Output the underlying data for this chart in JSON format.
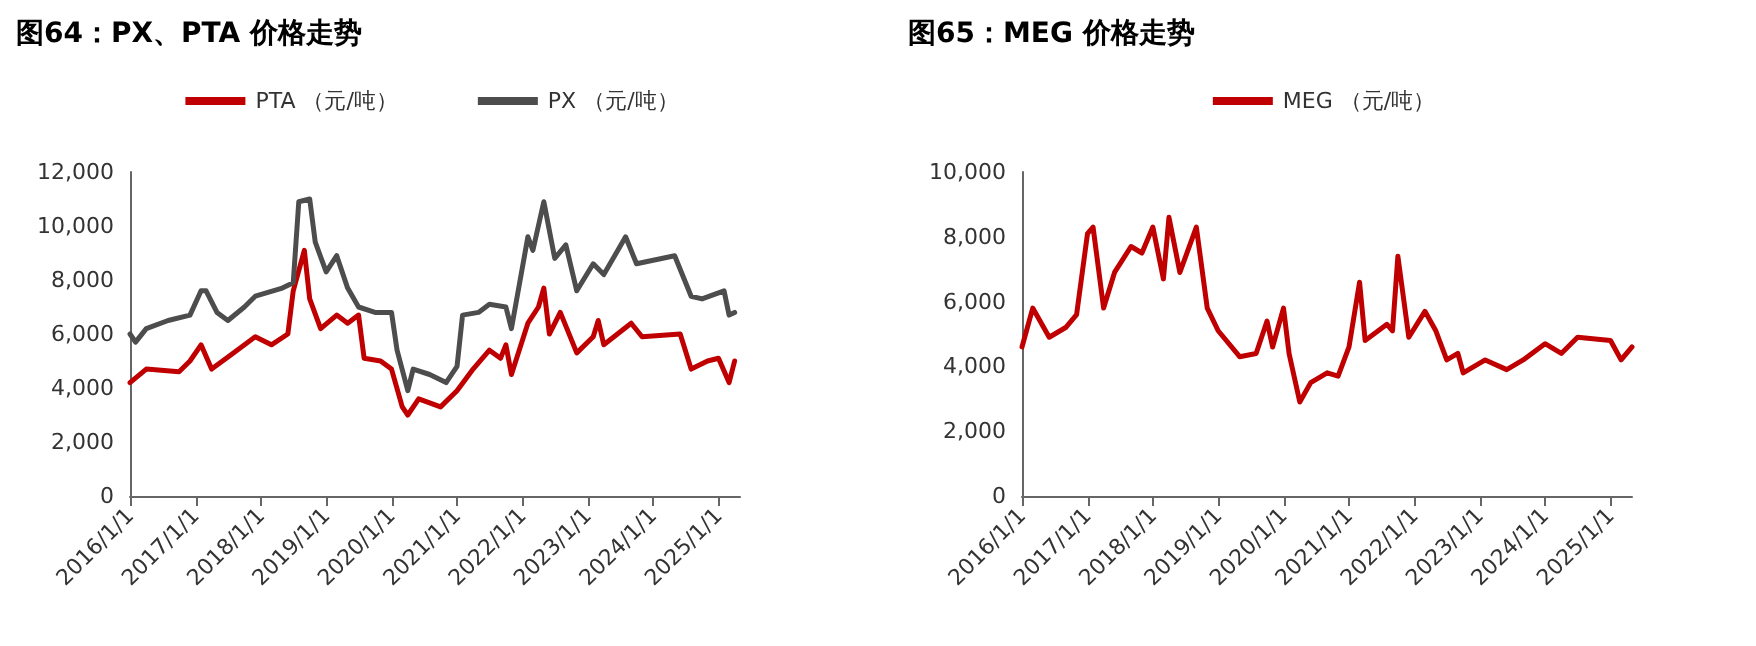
{
  "chart_data": [
    {
      "type": "line",
      "title": "图64：PX、PTA 价格走势",
      "legend": "top",
      "grid": false,
      "xlim": [
        "2016-01-01",
        "2025-05-01"
      ],
      "xticks": [
        {
          "value": "2016-01-01",
          "label": "2016/1/1"
        },
        {
          "value": "2017-01-01",
          "label": "2017/1/1"
        },
        {
          "value": "2018-01-01",
          "label": "2018/1/1"
        },
        {
          "value": "2019-01-01",
          "label": "2019/1/1"
        },
        {
          "value": "2020-01-01",
          "label": "2020/1/1"
        },
        {
          "value": "2021-01-01",
          "label": "2021/1/1"
        },
        {
          "value": "2022-01-01",
          "label": "2022/1/1"
        },
        {
          "value": "2023-01-01",
          "label": "2023/1/1"
        },
        {
          "value": "2024-01-01",
          "label": "2024/1/1"
        },
        {
          "value": "2025-01-01",
          "label": "2025/1/1"
        }
      ],
      "ylim": [
        0,
        12000
      ],
      "yticks": [
        0,
        {
          "value": 2000,
          "label": "2,000"
        },
        {
          "value": 4000,
          "label": "4,000"
        },
        {
          "value": 6000,
          "label": "6,000"
        },
        {
          "value": 8000,
          "label": "8,000"
        },
        {
          "value": 10000,
          "label": "10,000"
        },
        {
          "value": 12000,
          "label": "12,000"
        }
      ],
      "series": [
        {
          "name": "PTA （元/吨）",
          "color": "#c00000",
          "x": [
            "2016-01",
            "2016-04",
            "2016-10",
            "2016-12",
            "2017-02",
            "2017-04",
            "2017-08",
            "2017-12",
            "2018-03",
            "2018-06",
            "2018-07",
            "2018-09",
            "2018-10",
            "2018-12",
            "2019-03",
            "2019-05",
            "2019-07",
            "2019-08",
            "2019-11",
            "2020-01",
            "2020-03",
            "2020-04",
            "2020-06",
            "2020-10",
            "2021-01",
            "2021-04",
            "2021-07",
            "2021-09",
            "2021-10",
            "2021-11",
            "2022-02",
            "2022-04",
            "2022-05",
            "2022-06",
            "2022-08",
            "2022-11",
            "2023-02",
            "2023-03",
            "2023-04",
            "2023-09",
            "2023-11",
            "2024-06",
            "2024-08",
            "2024-11",
            "2025-01",
            "2025-03",
            "2025-04"
          ],
          "values": [
            4200,
            4700,
            4600,
            5000,
            5600,
            4700,
            5300,
            5900,
            5600,
            6000,
            7600,
            9100,
            7300,
            6200,
            6700,
            6400,
            6700,
            5100,
            5000,
            4700,
            3300,
            3000,
            3600,
            3300,
            3900,
            4700,
            5400,
            5100,
            5600,
            4500,
            6400,
            7000,
            7700,
            6000,
            6800,
            5300,
            5900,
            6500,
            5600,
            6400,
            5900,
            6000,
            4700,
            5000,
            5100,
            4200,
            5000
          ]
        },
        {
          "name": "PX （元/吨）",
          "color": "#4d4d4d",
          "x": [
            "2016-01",
            "2016-02",
            "2016-04",
            "2016-08",
            "2016-12",
            "2017-02",
            "2017-03",
            "2017-05",
            "2017-07",
            "2017-10",
            "2017-12",
            "2018-05",
            "2018-07",
            "2018-08",
            "2018-10",
            "2018-11",
            "2019-01",
            "2019-03",
            "2019-05",
            "2019-07",
            "2019-10",
            "2020-01",
            "2020-02",
            "2020-04",
            "2020-05",
            "2020-08",
            "2020-11",
            "2021-01",
            "2021-02",
            "2021-05",
            "2021-07",
            "2021-10",
            "2021-11",
            "2022-02",
            "2022-03",
            "2022-05",
            "2022-07",
            "2022-09",
            "2022-11",
            "2023-02",
            "2023-04",
            "2023-08",
            "2023-10",
            "2024-05",
            "2024-08",
            "2024-10",
            "2025-02",
            "2025-03",
            "2025-04"
          ],
          "values": [
            6000,
            5700,
            6200,
            6500,
            6700,
            7600,
            7600,
            6800,
            6500,
            7000,
            7400,
            7700,
            7900,
            10900,
            11000,
            9400,
            8300,
            8900,
            7700,
            7000,
            6800,
            6800,
            5400,
            3900,
            4700,
            4500,
            4200,
            4800,
            6700,
            6800,
            7100,
            7000,
            6200,
            9600,
            9100,
            10900,
            8800,
            9300,
            7600,
            8600,
            8200,
            9600,
            8600,
            8900,
            7400,
            7300,
            7600,
            6700,
            6800
          ]
        }
      ]
    },
    {
      "type": "line",
      "title": "图65：MEG 价格走势",
      "legend": "top",
      "grid": false,
      "xlim": [
        "2016-01-01",
        "2025-05-01"
      ],
      "xticks": [
        {
          "value": "2016-01-01",
          "label": "2016/1/1"
        },
        {
          "value": "2017-01-01",
          "label": "2017/1/1"
        },
        {
          "value": "2018-01-01",
          "label": "2018/1/1"
        },
        {
          "value": "2019-01-01",
          "label": "2019/1/1"
        },
        {
          "value": "2020-01-01",
          "label": "2020/1/1"
        },
        {
          "value": "2021-01-01",
          "label": "2021/1/1"
        },
        {
          "value": "2022-01-01",
          "label": "2022/1/1"
        },
        {
          "value": "2023-01-01",
          "label": "2023/1/1"
        },
        {
          "value": "2024-01-01",
          "label": "2024/1/1"
        },
        {
          "value": "2025-01-01",
          "label": "2025/1/1"
        }
      ],
      "ylim": [
        0,
        10000
      ],
      "yticks": [
        0,
        {
          "value": 2000,
          "label": "2,000"
        },
        {
          "value": 4000,
          "label": "4,000"
        },
        {
          "value": 6000,
          "label": "6,000"
        },
        {
          "value": 8000,
          "label": "8,000"
        },
        {
          "value": 10000,
          "label": "10,000"
        }
      ],
      "series": [
        {
          "name": "MEG （元/吨）",
          "color": "#c00000",
          "x": [
            "2016-01",
            "2016-03",
            "2016-06",
            "2016-09",
            "2016-11",
            "2017-01",
            "2017-02",
            "2017-04",
            "2017-06",
            "2017-09",
            "2017-11",
            "2018-01",
            "2018-03",
            "2018-04",
            "2018-06",
            "2018-09",
            "2018-11",
            "2019-01",
            "2019-05",
            "2019-08",
            "2019-10",
            "2019-11",
            "2020-01",
            "2020-02",
            "2020-04",
            "2020-06",
            "2020-09",
            "2020-11",
            "2021-01",
            "2021-03",
            "2021-04",
            "2021-08",
            "2021-09",
            "2021-10",
            "2021-12",
            "2022-03",
            "2022-05",
            "2022-07",
            "2022-09",
            "2022-10",
            "2023-02",
            "2023-06",
            "2023-09",
            "2024-01",
            "2024-04",
            "2024-07",
            "2025-01",
            "2025-03",
            "2025-05"
          ],
          "values": [
            4600,
            5800,
            4900,
            5200,
            5600,
            8100,
            8300,
            5800,
            6900,
            7700,
            7500,
            8300,
            6700,
            8600,
            6900,
            8300,
            5800,
            5100,
            4300,
            4400,
            5400,
            4600,
            5800,
            4400,
            2900,
            3500,
            3800,
            3700,
            4600,
            6600,
            4800,
            5300,
            5100,
            7400,
            4900,
            5700,
            5100,
            4200,
            4400,
            3800,
            4200,
            3900,
            4200,
            4700,
            4400,
            4900,
            4800,
            4200,
            4600
          ]
        }
      ]
    }
  ]
}
